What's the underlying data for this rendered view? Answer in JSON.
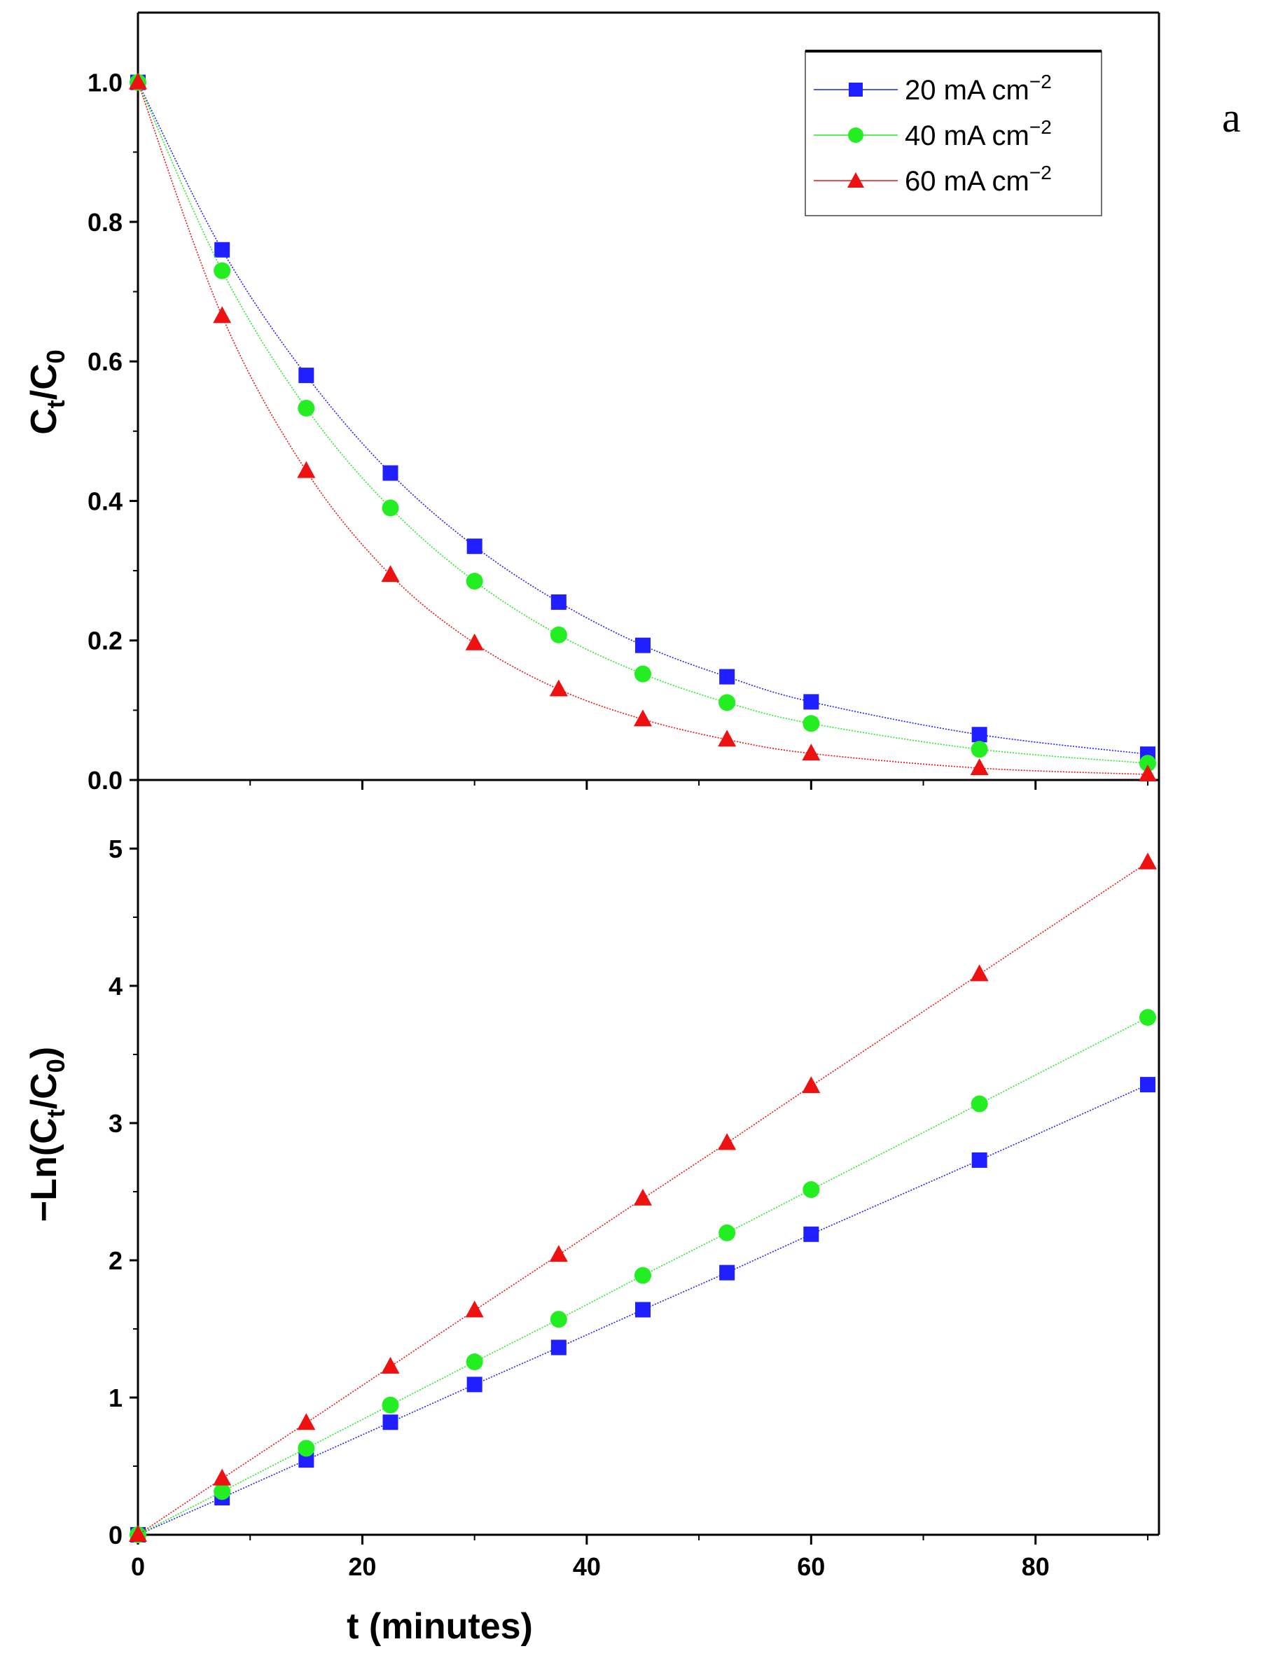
{
  "chart_data": [
    {
      "type": "scatter",
      "panel": "top",
      "panel_label": "a",
      "ylabel_main": "C",
      "ylabel_sub1": "t",
      "ylabel_sep": "/C",
      "ylabel_sub2": "0",
      "xlim": [
        0,
        91
      ],
      "ylim": [
        0,
        1.1
      ],
      "yticks": [
        0.0,
        0.2,
        0.4,
        0.6,
        0.8,
        1.0
      ],
      "ytick_labels": [
        "0.0",
        "0.2",
        "0.4",
        "0.6",
        "0.8",
        "1.0"
      ],
      "x": [
        0,
        7.5,
        15,
        22.5,
        30,
        37.5,
        45,
        52.5,
        60,
        75,
        90
      ],
      "series": [
        {
          "name": "20 mA cm−2",
          "label_main": "20 mA cm",
          "label_sup": "−2",
          "color": "#1f1fff",
          "marker": "square",
          "values": [
            1.0,
            0.76,
            0.58,
            0.44,
            0.335,
            0.255,
            0.193,
            0.148,
            0.112,
            0.065,
            0.037
          ]
        },
        {
          "name": "40 mA cm−2",
          "label_main": "40 mA cm",
          "label_sup": "−2",
          "color": "#22ee22",
          "marker": "circle",
          "values": [
            1.0,
            0.73,
            0.533,
            0.39,
            0.285,
            0.208,
            0.152,
            0.111,
            0.081,
            0.044,
            0.024
          ]
        },
        {
          "name": "60 mA cm−2",
          "label_main": "60 mA cm",
          "label_sup": "−2",
          "color": "#ee1111",
          "marker": "triangle",
          "values": [
            1.0,
            0.665,
            0.443,
            0.294,
            0.196,
            0.13,
            0.087,
            0.058,
            0.038,
            0.017,
            0.008
          ]
        }
      ],
      "legend_position": "top-right"
    },
    {
      "type": "scatter",
      "panel": "bottom",
      "xlabel": "t (minutes)",
      "ylabel_main": "−Ln(C",
      "ylabel_sub1": "t",
      "ylabel_sep": "/C",
      "ylabel_sub2": "0",
      "ylabel_end": ")",
      "xlim": [
        0,
        91
      ],
      "ylim": [
        0,
        5.5
      ],
      "xticks": [
        0,
        20,
        40,
        60,
        80
      ],
      "xtick_labels": [
        "0",
        "20",
        "40",
        "60",
        "80"
      ],
      "yticks": [
        0,
        1,
        2,
        3,
        4,
        5
      ],
      "ytick_labels": [
        "0",
        "1",
        "2",
        "3",
        "4",
        "5"
      ],
      "x": [
        0,
        7.5,
        15,
        22.5,
        30,
        37.5,
        45,
        52.5,
        60,
        75,
        90
      ],
      "series": [
        {
          "name": "20 mA cm−2",
          "color": "#1f1fff",
          "marker": "square",
          "values": [
            0,
            0.27,
            0.545,
            0.82,
            1.095,
            1.365,
            1.64,
            1.91,
            2.19,
            2.73,
            3.28
          ]
        },
        {
          "name": "40 mA cm−2",
          "color": "#22ee22",
          "marker": "circle",
          "values": [
            0,
            0.315,
            0.63,
            0.945,
            1.26,
            1.57,
            1.89,
            2.2,
            2.515,
            3.14,
            3.77
          ]
        },
        {
          "name": "60 mA cm−2",
          "color": "#ee1111",
          "marker": "triangle",
          "values": [
            0,
            0.41,
            0.815,
            1.225,
            1.635,
            2.04,
            2.45,
            2.855,
            3.27,
            4.085,
            4.9
          ]
        }
      ]
    }
  ]
}
